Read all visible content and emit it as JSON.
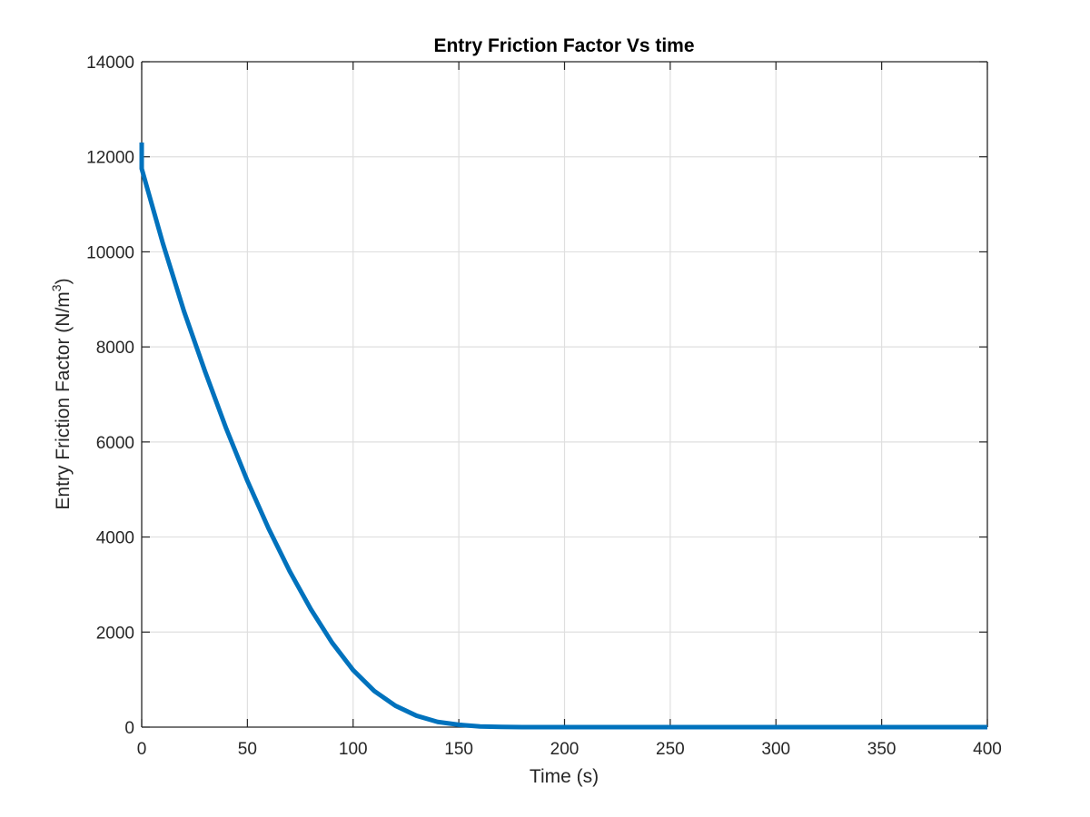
{
  "chart_data": {
    "type": "line",
    "title": "Entry Friction Factor Vs time",
    "xlabel": "Time (s)",
    "ylabel_main": "Entry Friction Factor (N/m",
    "ylabel_sup": "3",
    "ylabel_close": ")",
    "xlim": [
      0,
      400
    ],
    "ylim": [
      0,
      14000
    ],
    "xticks": [
      0,
      50,
      100,
      150,
      200,
      250,
      300,
      350,
      400
    ],
    "yticks": [
      0,
      2000,
      4000,
      6000,
      8000,
      10000,
      12000,
      14000
    ],
    "grid": true,
    "series": [
      {
        "name": "Entry Friction Factor",
        "color": "#0072BD",
        "x": [
          0,
          0,
          10,
          20,
          30,
          40,
          50,
          60,
          70,
          80,
          90,
          100,
          110,
          120,
          130,
          140,
          150,
          160,
          170,
          180,
          200,
          250,
          300,
          350,
          400
        ],
        "y": [
          12300,
          11750,
          10180,
          8750,
          7480,
          6280,
          5180,
          4180,
          3280,
          2480,
          1780,
          1200,
          760,
          450,
          240,
          110,
          50,
          15,
          4,
          0,
          0,
          0,
          0,
          0,
          0
        ]
      }
    ]
  }
}
